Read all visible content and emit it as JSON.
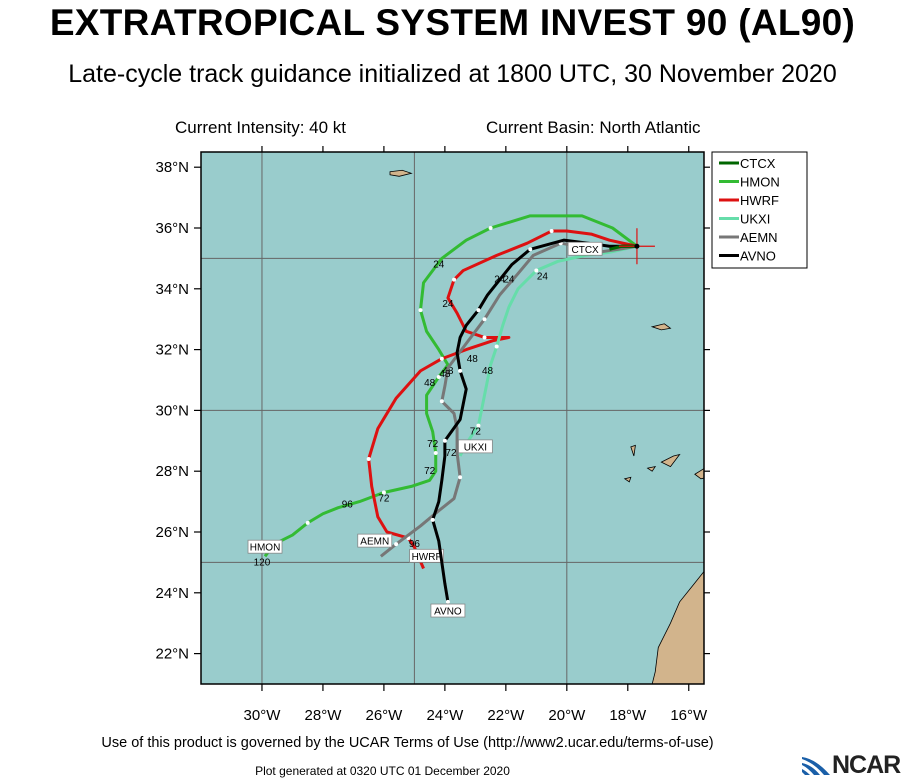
{
  "header": {
    "title": "EXTRATROPICAL SYSTEM INVEST 90 (AL90)",
    "subtitle": "Late-cycle track guidance initialized at 1800 UTC, 30 November 2020",
    "intensity": "Current Intensity: 40 kt",
    "basin": "Current Basin: North Atlantic"
  },
  "map": {
    "lon_range": [
      -32,
      -15.5
    ],
    "lat_range": [
      21,
      38.5
    ],
    "ocean_color": "#99cccc",
    "land_color": "#d2b48c",
    "x_ticks": [
      {
        "lon": -30,
        "label": "30°W"
      },
      {
        "lon": -28,
        "label": "28°W"
      },
      {
        "lon": -26,
        "label": "26°W"
      },
      {
        "lon": -24,
        "label": "24°W"
      },
      {
        "lon": -22,
        "label": "22°W"
      },
      {
        "lon": -20,
        "label": "20°W"
      },
      {
        "lon": -18,
        "label": "18°W"
      },
      {
        "lon": -16,
        "label": "16°W"
      }
    ],
    "y_ticks": [
      {
        "lat": 22,
        "label": "22°N"
      },
      {
        "lat": 24,
        "label": "24°N"
      },
      {
        "lat": 26,
        "label": "26°N"
      },
      {
        "lat": 28,
        "label": "28°N"
      },
      {
        "lat": 30,
        "label": "30°N"
      },
      {
        "lat": 32,
        "label": "32°N"
      },
      {
        "lat": 34,
        "label": "34°N"
      },
      {
        "lat": 36,
        "label": "36°N"
      },
      {
        "lat": 38,
        "label": "38°N"
      }
    ],
    "grid_lons": [
      -30,
      -25,
      -20
    ],
    "grid_lats": [
      25,
      30,
      35
    ],
    "current_position": {
      "lon": -17.7,
      "lat": 35.4
    }
  },
  "legend": {
    "items": [
      {
        "name": "CTCX",
        "color": "#006600"
      },
      {
        "name": "HMON",
        "color": "#33bb33"
      },
      {
        "name": "HWRF",
        "color": "#dd1111"
      },
      {
        "name": "UKXI",
        "color": "#66ddaa"
      },
      {
        "name": "AEMN",
        "color": "#777777"
      },
      {
        "name": "AVNO",
        "color": "#000000"
      }
    ]
  },
  "chart_data": {
    "type": "map",
    "tracks": [
      {
        "name": "HMON",
        "color": "#33bb33",
        "points": [
          [
            -17.7,
            35.4
          ],
          [
            -18.5,
            36.0
          ],
          [
            -19.5,
            36.4
          ],
          [
            -21.2,
            36.4
          ],
          [
            -22.5,
            36.0
          ],
          [
            -23.3,
            35.6
          ],
          [
            -24.1,
            35.0
          ],
          [
            -24.7,
            34.2
          ],
          [
            -24.8,
            33.3
          ],
          [
            -24.6,
            32.6
          ],
          [
            -24.2,
            32.0
          ],
          [
            -23.9,
            31.5
          ],
          [
            -24.2,
            31.1
          ],
          [
            -24.6,
            30.5
          ],
          [
            -24.6,
            29.9
          ],
          [
            -24.4,
            29.3
          ],
          [
            -24.3,
            28.6
          ],
          [
            -24.3,
            28.0
          ],
          [
            -24.5,
            27.7
          ],
          [
            -25.1,
            27.5
          ],
          [
            -26.0,
            27.3
          ],
          [
            -26.8,
            27.0
          ],
          [
            -27.5,
            26.8
          ],
          [
            -28.0,
            26.6
          ],
          [
            -28.5,
            26.3
          ],
          [
            -29.0,
            25.9
          ],
          [
            -29.6,
            25.6
          ],
          [
            -29.9,
            25.2
          ]
        ],
        "labels": [
          {
            "text": "24",
            "lon": -24.2,
            "lat": 34.7
          },
          {
            "text": "48",
            "lon": -24.5,
            "lat": 30.8
          },
          {
            "text": "72",
            "lon": -24.5,
            "lat": 27.9
          },
          {
            "text": "96",
            "lon": -27.2,
            "lat": 26.8
          },
          {
            "text": "120",
            "lon": -30.0,
            "lat": 24.9
          }
        ],
        "end_label": {
          "text": "HMON",
          "lon": -29.9,
          "lat": 25.5
        }
      },
      {
        "name": "HWRF",
        "color": "#dd1111",
        "points": [
          [
            -17.7,
            35.4
          ],
          [
            -18.6,
            35.6
          ],
          [
            -19.2,
            35.8
          ],
          [
            -20.0,
            35.9
          ],
          [
            -20.5,
            35.9
          ],
          [
            -21.3,
            35.5
          ],
          [
            -22.3,
            35.1
          ],
          [
            -23.4,
            34.6
          ],
          [
            -23.7,
            34.3
          ],
          [
            -23.9,
            33.7
          ],
          [
            -23.6,
            33.2
          ],
          [
            -23.3,
            32.6
          ],
          [
            -22.7,
            32.4
          ],
          [
            -21.9,
            32.4
          ],
          [
            -22.4,
            32.3
          ],
          [
            -23.3,
            32.0
          ],
          [
            -24.1,
            31.7
          ],
          [
            -24.8,
            31.3
          ],
          [
            -25.6,
            30.4
          ],
          [
            -26.2,
            29.4
          ],
          [
            -26.5,
            28.4
          ],
          [
            -26.4,
            27.5
          ],
          [
            -26.2,
            26.5
          ],
          [
            -25.9,
            26.0
          ],
          [
            -25.2,
            25.8
          ],
          [
            -25.0,
            25.5
          ],
          [
            -24.7,
            24.8
          ]
        ],
        "labels": [
          {
            "text": "24",
            "lon": -23.9,
            "lat": 33.4
          },
          {
            "text": "48",
            "lon": -23.9,
            "lat": 31.2
          },
          {
            "text": "72",
            "lon": -26.0,
            "lat": 27.0
          },
          {
            "text": "96",
            "lon": -25.0,
            "lat": 25.5
          }
        ],
        "end_label": {
          "text": "HWRF",
          "lon": -24.6,
          "lat": 25.2
        }
      },
      {
        "name": "UKXI",
        "color": "#66ddaa",
        "points": [
          [
            -17.7,
            35.4
          ],
          [
            -18.6,
            35.2
          ],
          [
            -19.4,
            35.1
          ],
          [
            -20.3,
            34.9
          ],
          [
            -21.0,
            34.6
          ],
          [
            -21.6,
            34.0
          ],
          [
            -21.9,
            33.4
          ],
          [
            -22.1,
            32.8
          ],
          [
            -22.3,
            32.1
          ],
          [
            -22.5,
            31.5
          ],
          [
            -22.6,
            31.0
          ],
          [
            -22.8,
            30.0
          ],
          [
            -22.9,
            29.5
          ],
          [
            -23.3,
            28.9
          ],
          [
            -23.5,
            28.5
          ]
        ],
        "labels": [
          {
            "text": "24",
            "lon": -20.8,
            "lat": 34.3
          },
          {
            "text": "48",
            "lon": -22.6,
            "lat": 31.2
          },
          {
            "text": "72",
            "lon": -23.0,
            "lat": 29.2
          }
        ],
        "end_label": {
          "text": "UKXI",
          "lon": -23.0,
          "lat": 28.8
        }
      },
      {
        "name": "AEMN",
        "color": "#777777",
        "points": [
          [
            -17.7,
            35.4
          ],
          [
            -18.3,
            35.3
          ],
          [
            -19.0,
            35.2
          ],
          [
            -19.6,
            35.4
          ],
          [
            -20.2,
            35.5
          ],
          [
            -21.1,
            35.1
          ],
          [
            -21.6,
            34.5
          ],
          [
            -22.2,
            33.8
          ],
          [
            -22.7,
            33.0
          ],
          [
            -23.3,
            32.2
          ],
          [
            -23.9,
            31.4
          ],
          [
            -24.0,
            30.8
          ],
          [
            -24.1,
            30.3
          ],
          [
            -23.7,
            29.9
          ],
          [
            -23.6,
            29.4
          ],
          [
            -23.6,
            28.6
          ],
          [
            -23.5,
            27.8
          ],
          [
            -23.7,
            27.1
          ],
          [
            -24.2,
            26.7
          ],
          [
            -24.8,
            26.2
          ],
          [
            -25.6,
            25.6
          ],
          [
            -26.1,
            25.2
          ]
        ],
        "labels": [
          {
            "text": "24",
            "lon": -21.9,
            "lat": 34.2
          },
          {
            "text": "48",
            "lon": -24.0,
            "lat": 31.1
          },
          {
            "text": "72",
            "lon": -23.8,
            "lat": 28.5
          }
        ],
        "end_label": {
          "text": "AEMN",
          "lon": -26.3,
          "lat": 25.7
        }
      },
      {
        "name": "AVNO",
        "color": "#000000",
        "points": [
          [
            -17.7,
            35.4
          ],
          [
            -18.6,
            35.4
          ],
          [
            -19.3,
            35.5
          ],
          [
            -20.1,
            35.6
          ],
          [
            -21.2,
            35.3
          ],
          [
            -21.8,
            34.8
          ],
          [
            -22.2,
            34.3
          ],
          [
            -22.6,
            33.8
          ],
          [
            -22.9,
            33.3
          ],
          [
            -23.3,
            32.8
          ],
          [
            -23.5,
            32.4
          ],
          [
            -23.6,
            31.9
          ],
          [
            -23.5,
            31.3
          ],
          [
            -23.3,
            30.7
          ],
          [
            -23.4,
            30.2
          ],
          [
            -23.5,
            29.7
          ],
          [
            -24.0,
            29.0
          ],
          [
            -24.0,
            28.5
          ],
          [
            -24.1,
            27.7
          ],
          [
            -24.2,
            27.0
          ],
          [
            -24.4,
            26.4
          ],
          [
            -24.2,
            25.7
          ],
          [
            -24.1,
            25.0
          ],
          [
            -24.0,
            24.3
          ],
          [
            -23.9,
            23.7
          ],
          [
            -23.9,
            23.2
          ]
        ],
        "labels": [
          {
            "text": "24",
            "lon": -22.2,
            "lat": 34.2
          },
          {
            "text": "48",
            "lon": -23.1,
            "lat": 31.6
          },
          {
            "text": "72",
            "lon": -24.4,
            "lat": 28.8
          }
        ],
        "end_label": {
          "text": "AVNO",
          "lon": -23.9,
          "lat": 23.4
        }
      },
      {
        "name": "CTCX",
        "color": "#006600",
        "points": [
          [
            -17.7,
            35.4
          ],
          [
            -18.2,
            35.4
          ],
          [
            -18.6,
            35.3
          ]
        ],
        "labels": [],
        "end_label": {
          "text": "CTCX",
          "lon": -19.4,
          "lat": 35.3
        }
      }
    ]
  },
  "footer": {
    "terms": "Use of this product is governed by the UCAR Terms of Use (http://www2.ucar.edu/terms-of-use)",
    "plot_time": "Plot generated at 0320 UTC   01 December 2020",
    "logo": "NCAR"
  }
}
